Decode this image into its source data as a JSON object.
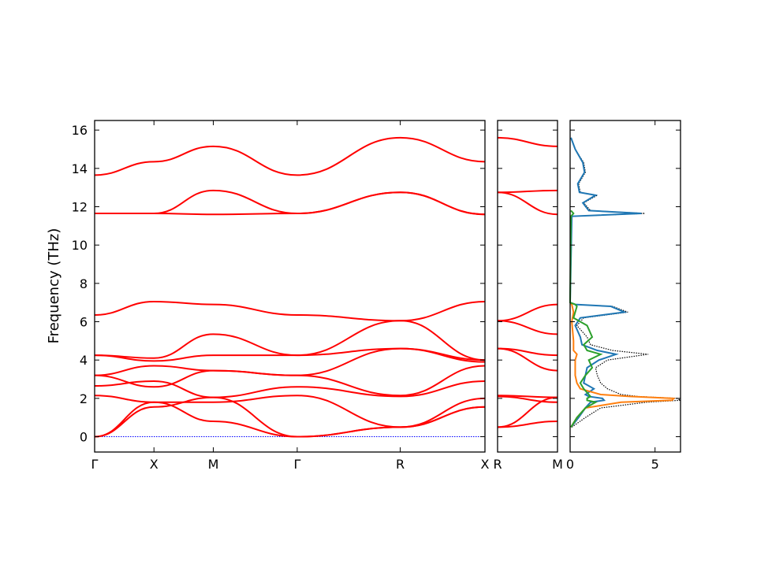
{
  "chart_data": [
    {
      "type": "line",
      "name": "band-structure",
      "ylabel": "Frequency (THz)",
      "ylim": [
        -0.8,
        16.5
      ],
      "yticks": [
        0,
        2,
        4,
        6,
        8,
        10,
        12,
        14,
        16
      ],
      "xlim": [
        0,
        1.0
      ],
      "xticks": [
        {
          "pos": 0.0,
          "label": "Γ"
        },
        {
          "pos": 0.152,
          "label": "X"
        },
        {
          "pos": 0.304,
          "label": "M"
        },
        {
          "pos": 0.519,
          "label": "Γ"
        },
        {
          "pos": 0.783,
          "label": "R"
        },
        {
          "pos": 1.0,
          "label": "X"
        }
      ],
      "band_color": "#ff0000",
      "zero_line_color": "#0000ff",
      "zero_line": 0,
      "series": [
        {
          "x": [
            0,
            0.152,
            0.304,
            0.519,
            0.783,
            1.0
          ],
          "values": [
            13.65,
            14.35,
            15.15,
            13.65,
            15.6,
            14.35
          ]
        },
        {
          "x": [
            0,
            0.152,
            0.304,
            0.519,
            0.783,
            1.0
          ],
          "values": [
            11.65,
            11.65,
            12.85,
            11.65,
            12.75,
            11.6
          ]
        },
        {
          "x": [
            0,
            0.152,
            0.304,
            0.519,
            0.783,
            1.0
          ],
          "values": [
            11.65,
            11.65,
            11.6,
            11.65,
            12.75,
            11.6
          ]
        },
        {
          "x": [
            0,
            0.152,
            0.304,
            0.519,
            0.783,
            1.0
          ],
          "values": [
            6.35,
            7.05,
            6.9,
            6.35,
            6.05,
            7.05
          ]
        },
        {
          "x": [
            0,
            0.152,
            0.304,
            0.519,
            0.783,
            1.0
          ],
          "values": [
            4.25,
            4.1,
            5.35,
            4.25,
            6.05,
            4.0
          ]
        },
        {
          "x": [
            0,
            0.152,
            0.304,
            0.519,
            0.783,
            1.0
          ],
          "values": [
            4.25,
            3.95,
            4.25,
            4.25,
            4.6,
            4.0
          ]
        },
        {
          "x": [
            0,
            0.152,
            0.304,
            0.519,
            0.783,
            1.0
          ],
          "values": [
            3.2,
            3.7,
            3.45,
            3.2,
            4.6,
            3.9
          ]
        },
        {
          "x": [
            0,
            0.152,
            0.304,
            0.519,
            0.783,
            1.0
          ],
          "values": [
            3.2,
            2.6,
            3.45,
            3.2,
            2.15,
            3.7
          ]
        },
        {
          "x": [
            0,
            0.152,
            0.304,
            0.519,
            0.783,
            1.0
          ],
          "values": [
            2.65,
            2.9,
            2.05,
            2.6,
            2.1,
            2.9
          ]
        },
        {
          "x": [
            0,
            0.152,
            0.304,
            0.519,
            0.783,
            1.0
          ],
          "values": [
            2.15,
            1.8,
            1.8,
            2.15,
            0.5,
            2.0
          ]
        },
        {
          "x": [
            0,
            0.152,
            0.304,
            0.519,
            0.783,
            1.0
          ],
          "values": [
            0,
            1.8,
            0.8,
            0,
            0.5,
            1.55
          ]
        },
        {
          "x": [
            0,
            0.152,
            0.304,
            0.519,
            0.783,
            1.0
          ],
          "values": [
            0,
            1.55,
            2.05,
            0,
            0.5,
            1.55
          ]
        }
      ]
    },
    {
      "type": "line",
      "name": "band-structure-R-M",
      "ylim": [
        -0.8,
        16.5
      ],
      "xticks": [
        {
          "pos": 0.0,
          "label": "R"
        },
        {
          "pos": 1.0,
          "label": "M"
        }
      ],
      "band_color": "#ff0000",
      "series": [
        {
          "x": [
            0,
            1
          ],
          "values": [
            15.6,
            15.15
          ]
        },
        {
          "x": [
            0,
            1
          ],
          "values": [
            12.75,
            12.85
          ]
        },
        {
          "x": [
            0,
            1
          ],
          "values": [
            12.75,
            11.6
          ]
        },
        {
          "x": [
            0,
            1
          ],
          "values": [
            6.05,
            6.9
          ]
        },
        {
          "x": [
            0,
            1
          ],
          "values": [
            6.05,
            5.35
          ]
        },
        {
          "x": [
            0,
            1
          ],
          "values": [
            4.6,
            4.25
          ]
        },
        {
          "x": [
            0,
            1
          ],
          "values": [
            4.6,
            3.45
          ]
        },
        {
          "x": [
            0,
            1
          ],
          "values": [
            2.15,
            2.05
          ]
        },
        {
          "x": [
            0,
            1
          ],
          "values": [
            2.1,
            1.8
          ]
        },
        {
          "x": [
            0,
            1
          ],
          "values": [
            0.5,
            2.05
          ]
        },
        {
          "x": [
            0,
            1
          ],
          "values": [
            0.5,
            0.8
          ]
        }
      ]
    },
    {
      "type": "line",
      "name": "density-of-states",
      "ylim": [
        -0.8,
        16.5
      ],
      "xlim": [
        0,
        6.5
      ],
      "xticks": [
        {
          "pos": 0,
          "label": "0"
        },
        {
          "pos": 5,
          "label": "5"
        }
      ],
      "series": [
        {
          "color": "#000000",
          "style": "dotted",
          "y": [
            0.5,
            1.0,
            1.5,
            1.8,
            1.9,
            2.0,
            2.1,
            2.2,
            2.5,
            2.8,
            3.2,
            3.6,
            4.0,
            4.3,
            4.5,
            4.8,
            5.2,
            5.8,
            6.2,
            6.5,
            6.8,
            6.9,
            7.0,
            11.5,
            11.65,
            11.8,
            12.2,
            12.6,
            12.75,
            13.2,
            13.8,
            14.3,
            15.0,
            15.6
          ],
          "values": [
            0.1,
            0.9,
            1.8,
            4.5,
            6.5,
            6.3,
            4.0,
            3.0,
            2.2,
            1.8,
            1.6,
            1.5,
            2.2,
            4.6,
            2.5,
            1.2,
            1.0,
            0.4,
            0.8,
            3.4,
            2.5,
            0.3,
            0,
            0.1,
            4.4,
            1.2,
            0.8,
            1.6,
            0.6,
            0.5,
            0.9,
            0.8,
            0.3,
            0.05
          ]
        },
        {
          "color": "#1f77b4",
          "style": "solid",
          "y": [
            0.5,
            1.0,
            1.5,
            1.8,
            1.9,
            2.0,
            2.1,
            2.2,
            2.5,
            2.8,
            3.2,
            3.6,
            4.0,
            4.3,
            4.5,
            4.8,
            5.2,
            5.8,
            6.2,
            6.5,
            6.8,
            6.9,
            7.0,
            11.5,
            11.65,
            11.8,
            12.2,
            12.6,
            12.75,
            13.2,
            13.8,
            14.3,
            15.0,
            15.6
          ],
          "values": [
            0.05,
            0.5,
            0.9,
            1.2,
            2.0,
            1.9,
            1.1,
            0.9,
            1.4,
            0.8,
            0.9,
            1.0,
            1.7,
            2.7,
            1.6,
            0.7,
            0.6,
            0.3,
            0.6,
            3.2,
            2.4,
            0.3,
            0,
            0.1,
            4.2,
            1.1,
            0.75,
            1.5,
            0.55,
            0.45,
            0.85,
            0.75,
            0.3,
            0.05
          ]
        },
        {
          "color": "#ff7f0e",
          "style": "solid",
          "y": [
            0.5,
            1.0,
            1.5,
            1.8,
            1.9,
            2.0,
            2.1,
            2.2,
            2.5,
            2.8,
            3.2,
            3.6,
            4.0,
            4.3,
            4.5,
            5.0,
            5.5,
            6.0,
            6.5,
            6.9,
            7.0
          ],
          "values": [
            0.05,
            0.4,
            0.9,
            3.0,
            6.0,
            6.1,
            3.5,
            1.8,
            0.6,
            0.4,
            0.3,
            0.3,
            0.3,
            0.4,
            0.2,
            0.2,
            0.15,
            0.1,
            0.2,
            0.1,
            0
          ]
        },
        {
          "color": "#2ca02c",
          "style": "solid",
          "y": [
            0.5,
            1.0,
            1.5,
            1.8,
            1.9,
            2.0,
            2.1,
            2.2,
            2.5,
            2.8,
            3.2,
            3.6,
            4.0,
            4.3,
            4.5,
            4.8,
            5.2,
            5.8,
            6.2,
            6.5,
            6.8,
            6.9,
            7.0,
            11.5,
            11.65,
            11.8
          ],
          "values": [
            0.05,
            0.4,
            0.9,
            1.5,
            1.0,
            1.0,
            1.2,
            1.1,
            0.8,
            0.6,
            0.9,
            1.3,
            1.1,
            1.8,
            1.0,
            0.8,
            1.3,
            1.0,
            0.2,
            0.3,
            0.4,
            0.3,
            0,
            0.05,
            0.2,
            0.05
          ]
        }
      ]
    }
  ]
}
